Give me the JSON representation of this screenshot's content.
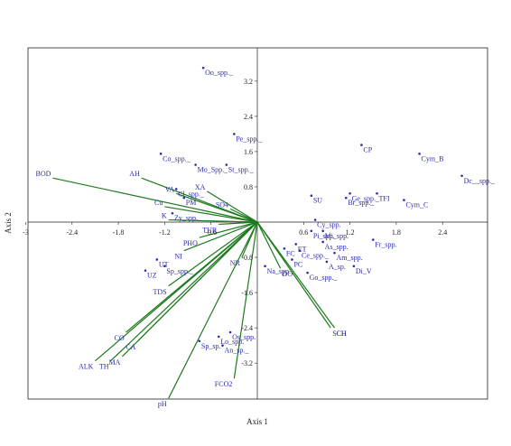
{
  "chart_data": {
    "type": "scatter",
    "title": "",
    "xlabel": "Axis 1",
    "ylabel": "Axis 2",
    "xlim": [
      -3.0,
      3.2
    ],
    "ylim": [
      -4.0,
      4.1
    ],
    "x_ticks": [
      "-3",
      "-2.4",
      "-1.8",
      "-1.2",
      "-0.6",
      "0.6",
      "1.2",
      "1.8",
      "2.4"
    ],
    "y_ticks": [
      "3.2",
      "2.4",
      "1.6",
      "0.8",
      "-0.8",
      "-1.6",
      "-2.4",
      "-3.2"
    ],
    "x_tick_values": [
      -3.0,
      -2.4,
      -1.8,
      -1.2,
      -0.6,
      0.6,
      1.2,
      1.8,
      2.4
    ],
    "y_tick_values": [
      3.2,
      2.4,
      1.6,
      0.8,
      -0.8,
      -1.6,
      -2.4,
      -3.2
    ],
    "vector_color": "#1e7a1e",
    "label_color": "#2b2bb0",
    "vectors": [
      {
        "name": "BOD",
        "x": -2.65,
        "y": 1.0
      },
      {
        "name": "ALK",
        "x": -2.1,
        "y": -3.15
      },
      {
        "name": "TH",
        "x": -1.9,
        "y": -3.15
      },
      {
        "name": "MA",
        "x": -1.75,
        "y": -3.05
      },
      {
        "name": "CO",
        "x": -1.7,
        "y": -2.5
      },
      {
        "name": "CA",
        "x": -1.55,
        "y": -2.7
      },
      {
        "name": "TDS",
        "x": -1.15,
        "y": -1.45
      },
      {
        "name": "pH",
        "x": -1.15,
        "y": -4.0
      },
      {
        "name": "FCO2",
        "x": -0.3,
        "y": -3.55
      },
      {
        "name": "NI",
        "x": -0.95,
        "y": -0.65
      },
      {
        "name": "PHO",
        "x": -0.75,
        "y": -0.35
      },
      {
        "name": "TUR",
        "x": -0.5,
        "y": -0.05
      },
      {
        "name": "SO4",
        "x": -0.35,
        "y": 0.3
      },
      {
        "name": "K",
        "x": -1.15,
        "y": 0.05
      },
      {
        "name": "Cu",
        "x": -1.2,
        "y": 0.35
      },
      {
        "name": "AH",
        "x": -1.5,
        "y": 1.0
      },
      {
        "name": "VA",
        "x": -1.05,
        "y": 0.65
      },
      {
        "name": "XA",
        "x": -0.65,
        "y": 0.7
      },
      {
        "name": "NR",
        "x": -0.2,
        "y": -0.8
      },
      {
        "name": "DO",
        "x": 0.3,
        "y": -1.05
      },
      {
        "name": "SCH",
        "x": 0.95,
        "y": -2.4
      },
      {
        "name": "CH",
        "x": 1.0,
        "y": -2.4
      }
    ],
    "points": [
      {
        "name": "Oo_spp._",
        "x": -0.7,
        "y": 3.5
      },
      {
        "name": "Pe_spp._",
        "x": -0.3,
        "y": 2.0
      },
      {
        "name": "CP",
        "x": 1.35,
        "y": 1.75
      },
      {
        "name": "Cym_B",
        "x": 2.1,
        "y": 1.55
      },
      {
        "name": "Dc__spp._",
        "x": 2.65,
        "y": 1.05
      },
      {
        "name": "Cym_C",
        "x": 1.9,
        "y": 0.5
      },
      {
        "name": "TFI",
        "x": 1.55,
        "y": 0.65
      },
      {
        "name": "Ge_spp._",
        "x": 1.2,
        "y": 0.65
      },
      {
        "name": "Br_spp._",
        "x": 1.15,
        "y": 0.55
      },
      {
        "name": "SU",
        "x": 0.7,
        "y": 0.6
      },
      {
        "name": "Co_spp._",
        "x": -1.25,
        "y": 1.55
      },
      {
        "name": "Mo_Spp._",
        "x": -0.8,
        "y": 1.3
      },
      {
        "name": "St_spp._",
        "x": -0.4,
        "y": 1.3
      },
      {
        "name": "Cl_spp._",
        "x": -1.05,
        "y": 0.75
      },
      {
        "name": "PM",
        "x": -0.95,
        "y": 0.55
      },
      {
        "name": "Zy_spp._",
        "x": -1.1,
        "y": 0.2
      },
      {
        "name": "Cy_spp.",
        "x": 0.75,
        "y": 0.05
      },
      {
        "name": "Pi_spp.",
        "x": 0.7,
        "y": -0.2
      },
      {
        "name": "Mi_spp.",
        "x": 0.85,
        "y": -0.2
      },
      {
        "name": "As_spp.",
        "x": 0.85,
        "y": -0.45
      },
      {
        "name": "Fr_spp.",
        "x": 1.5,
        "y": -0.4
      },
      {
        "name": "Am_spp.",
        "x": 1.0,
        "y": -0.7
      },
      {
        "name": "A_sp.",
        "x": 0.9,
        "y": -0.9
      },
      {
        "name": "Di_V",
        "x": 1.25,
        "y": -1.0
      },
      {
        "name": "Go_spp._",
        "x": 0.65,
        "y": -1.15
      },
      {
        "name": "FC",
        "x": 0.35,
        "y": -0.6
      },
      {
        "name": "ET",
        "x": 0.5,
        "y": -0.5
      },
      {
        "name": "Ce_spp._",
        "x": 0.55,
        "y": -0.65
      },
      {
        "name": "PC",
        "x": 0.45,
        "y": -0.85
      },
      {
        "name": "Na_spp.",
        "x": 0.1,
        "y": -1.0
      },
      {
        "name": "UT",
        "x": -1.3,
        "y": -0.85
      },
      {
        "name": "UZ",
        "x": -1.45,
        "y": -1.1
      },
      {
        "name": "Sp_spp._",
        "x": -1.2,
        "y": -1.0
      },
      {
        "name": "Sp_sp.",
        "x": -0.75,
        "y": -2.7
      },
      {
        "name": "Lo_spp.",
        "x": -0.5,
        "y": -2.6
      },
      {
        "name": "Os_spp.",
        "x": -0.35,
        "y": -2.5
      },
      {
        "name": "An_sp._",
        "x": -0.45,
        "y": -2.8
      }
    ]
  }
}
